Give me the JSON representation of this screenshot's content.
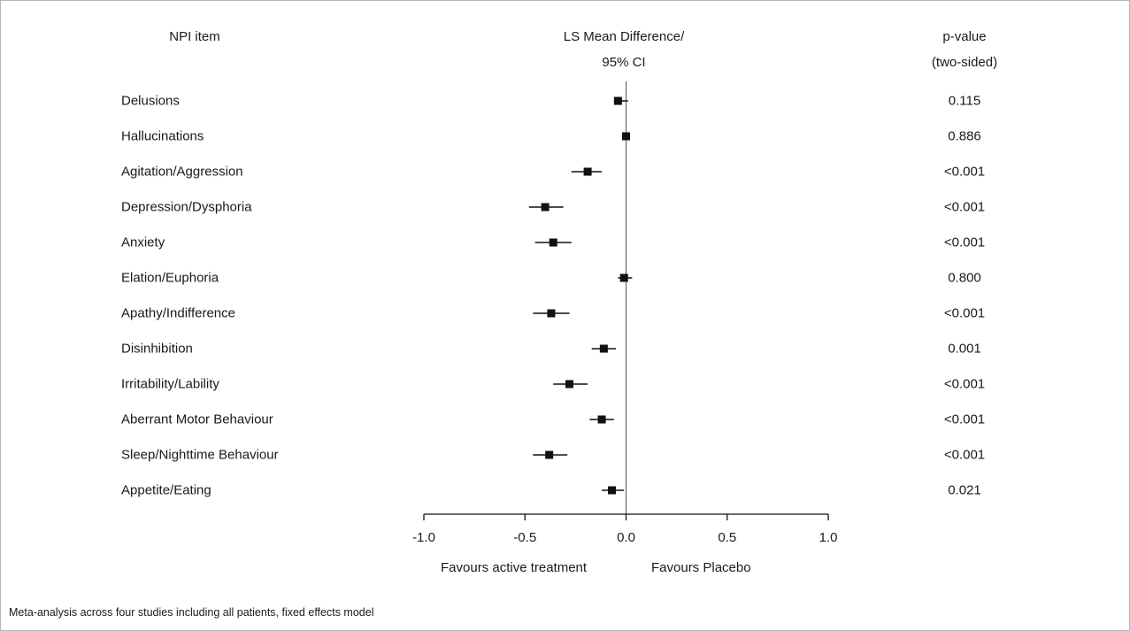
{
  "header": {
    "item_col": "NPI item",
    "effect_col_line1": "LS Mean Difference/",
    "effect_col_line2": "95% CI",
    "p_col_line1": "p-value",
    "p_col_line2": "(two-sided)"
  },
  "chart_data": {
    "type": "forest",
    "xlim": [
      -1.0,
      1.0
    ],
    "x_ticks": [
      -1.0,
      -0.5,
      0.0,
      0.5,
      1.0
    ],
    "x_tick_labels": [
      "-1.0",
      "-0.5",
      "0.0",
      "0.5",
      "1.0"
    ],
    "reference_line": 0.0,
    "favours_left": "Favours active treatment",
    "favours_right": "Favours Placebo",
    "items": [
      {
        "label": "Delusions",
        "estimate": -0.04,
        "ci_low": -0.06,
        "ci_high": 0.01,
        "p": "0.115"
      },
      {
        "label": "Hallucinations",
        "estimate": 0.0,
        "ci_low": -0.01,
        "ci_high": 0.01,
        "p": "0.886"
      },
      {
        "label": "Agitation/Aggression",
        "estimate": -0.19,
        "ci_low": -0.27,
        "ci_high": -0.12,
        "p": "<0.001"
      },
      {
        "label": "Depression/Dysphoria",
        "estimate": -0.4,
        "ci_low": -0.48,
        "ci_high": -0.31,
        "p": "<0.001"
      },
      {
        "label": "Anxiety",
        "estimate": -0.36,
        "ci_low": -0.45,
        "ci_high": -0.27,
        "p": "<0.001"
      },
      {
        "label": "Elation/Euphoria",
        "estimate": -0.01,
        "ci_low": -0.04,
        "ci_high": 0.03,
        "p": "0.800"
      },
      {
        "label": "Apathy/Indifference",
        "estimate": -0.37,
        "ci_low": -0.46,
        "ci_high": -0.28,
        "p": "<0.001"
      },
      {
        "label": "Disinhibition",
        "estimate": -0.11,
        "ci_low": -0.17,
        "ci_high": -0.05,
        "p": "0.001"
      },
      {
        "label": "Irritability/Lability",
        "estimate": -0.28,
        "ci_low": -0.36,
        "ci_high": -0.19,
        "p": "<0.001"
      },
      {
        "label": "Aberrant Motor Behaviour",
        "estimate": -0.12,
        "ci_low": -0.18,
        "ci_high": -0.06,
        "p": "<0.001"
      },
      {
        "label": "Sleep/Nighttime Behaviour",
        "estimate": -0.38,
        "ci_low": -0.46,
        "ci_high": -0.29,
        "p": "<0.001"
      },
      {
        "label": "Appetite/Eating",
        "estimate": -0.07,
        "ci_low": -0.12,
        "ci_high": -0.01,
        "p": "0.021"
      }
    ]
  },
  "footnote": "Meta-analysis across four studies including all patients, fixed effects model"
}
